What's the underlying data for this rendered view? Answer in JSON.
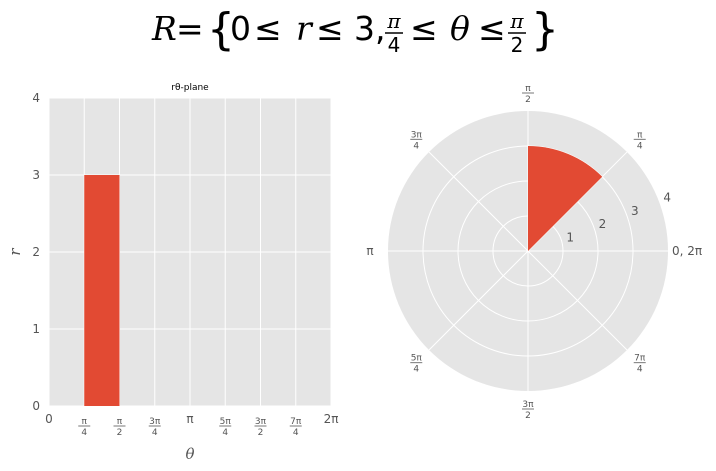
{
  "title": {
    "lhs": "R",
    "rhs_text": "0 ≤ r ≤ 3, π/4 ≤ θ ≤ π/2"
  },
  "colors": {
    "bar": "#E24A33",
    "panel_bg": "#E5E5E5",
    "grid": "#ffffff",
    "tick_text": "#555555"
  },
  "chart_data": [
    {
      "type": "bar",
      "title": "rθ-plane",
      "xlabel": "θ",
      "ylabel": "r",
      "xlim": [
        0,
        6.2832
      ],
      "ylim": [
        0,
        4
      ],
      "x_ticks": [
        {
          "value": 0,
          "label": "0"
        },
        {
          "value": 0.7854,
          "num": "π",
          "den": "4"
        },
        {
          "value": 1.5708,
          "num": "π",
          "den": "2"
        },
        {
          "value": 2.3562,
          "num": "3π",
          "den": "4"
        },
        {
          "value": 3.1416,
          "label": "π"
        },
        {
          "value": 3.927,
          "num": "5π",
          "den": "4"
        },
        {
          "value": 4.7124,
          "num": "3π",
          "den": "2"
        },
        {
          "value": 5.4978,
          "num": "7π",
          "den": "4"
        },
        {
          "value": 6.2832,
          "label": "2π"
        }
      ],
      "y_ticks": [
        0,
        1,
        2,
        3,
        4
      ],
      "bars": [
        {
          "theta_start": 0.7854,
          "theta_end": 1.5708,
          "r": 3
        }
      ],
      "grid": true
    },
    {
      "type": "polar",
      "r_max": 4,
      "r_ticks": [
        1,
        2,
        3,
        4
      ],
      "theta_ticks": [
        {
          "value": 0,
          "label": "0, 2π"
        },
        {
          "value": 0.7854,
          "num": "π",
          "den": "4"
        },
        {
          "value": 1.5708,
          "num": "π",
          "den": "2"
        },
        {
          "value": 2.3562,
          "num": "3π",
          "den": "4"
        },
        {
          "value": 3.1416,
          "label": "π"
        },
        {
          "value": 3.927,
          "num": "5π",
          "den": "4"
        },
        {
          "value": 4.7124,
          "num": "3π",
          "den": "2"
        },
        {
          "value": 5.4978,
          "num": "7π",
          "den": "4"
        }
      ],
      "wedges": [
        {
          "theta_start": 0.7854,
          "theta_end": 1.5708,
          "r_inner": 0,
          "r_outer": 3
        }
      ],
      "grid": true
    }
  ]
}
